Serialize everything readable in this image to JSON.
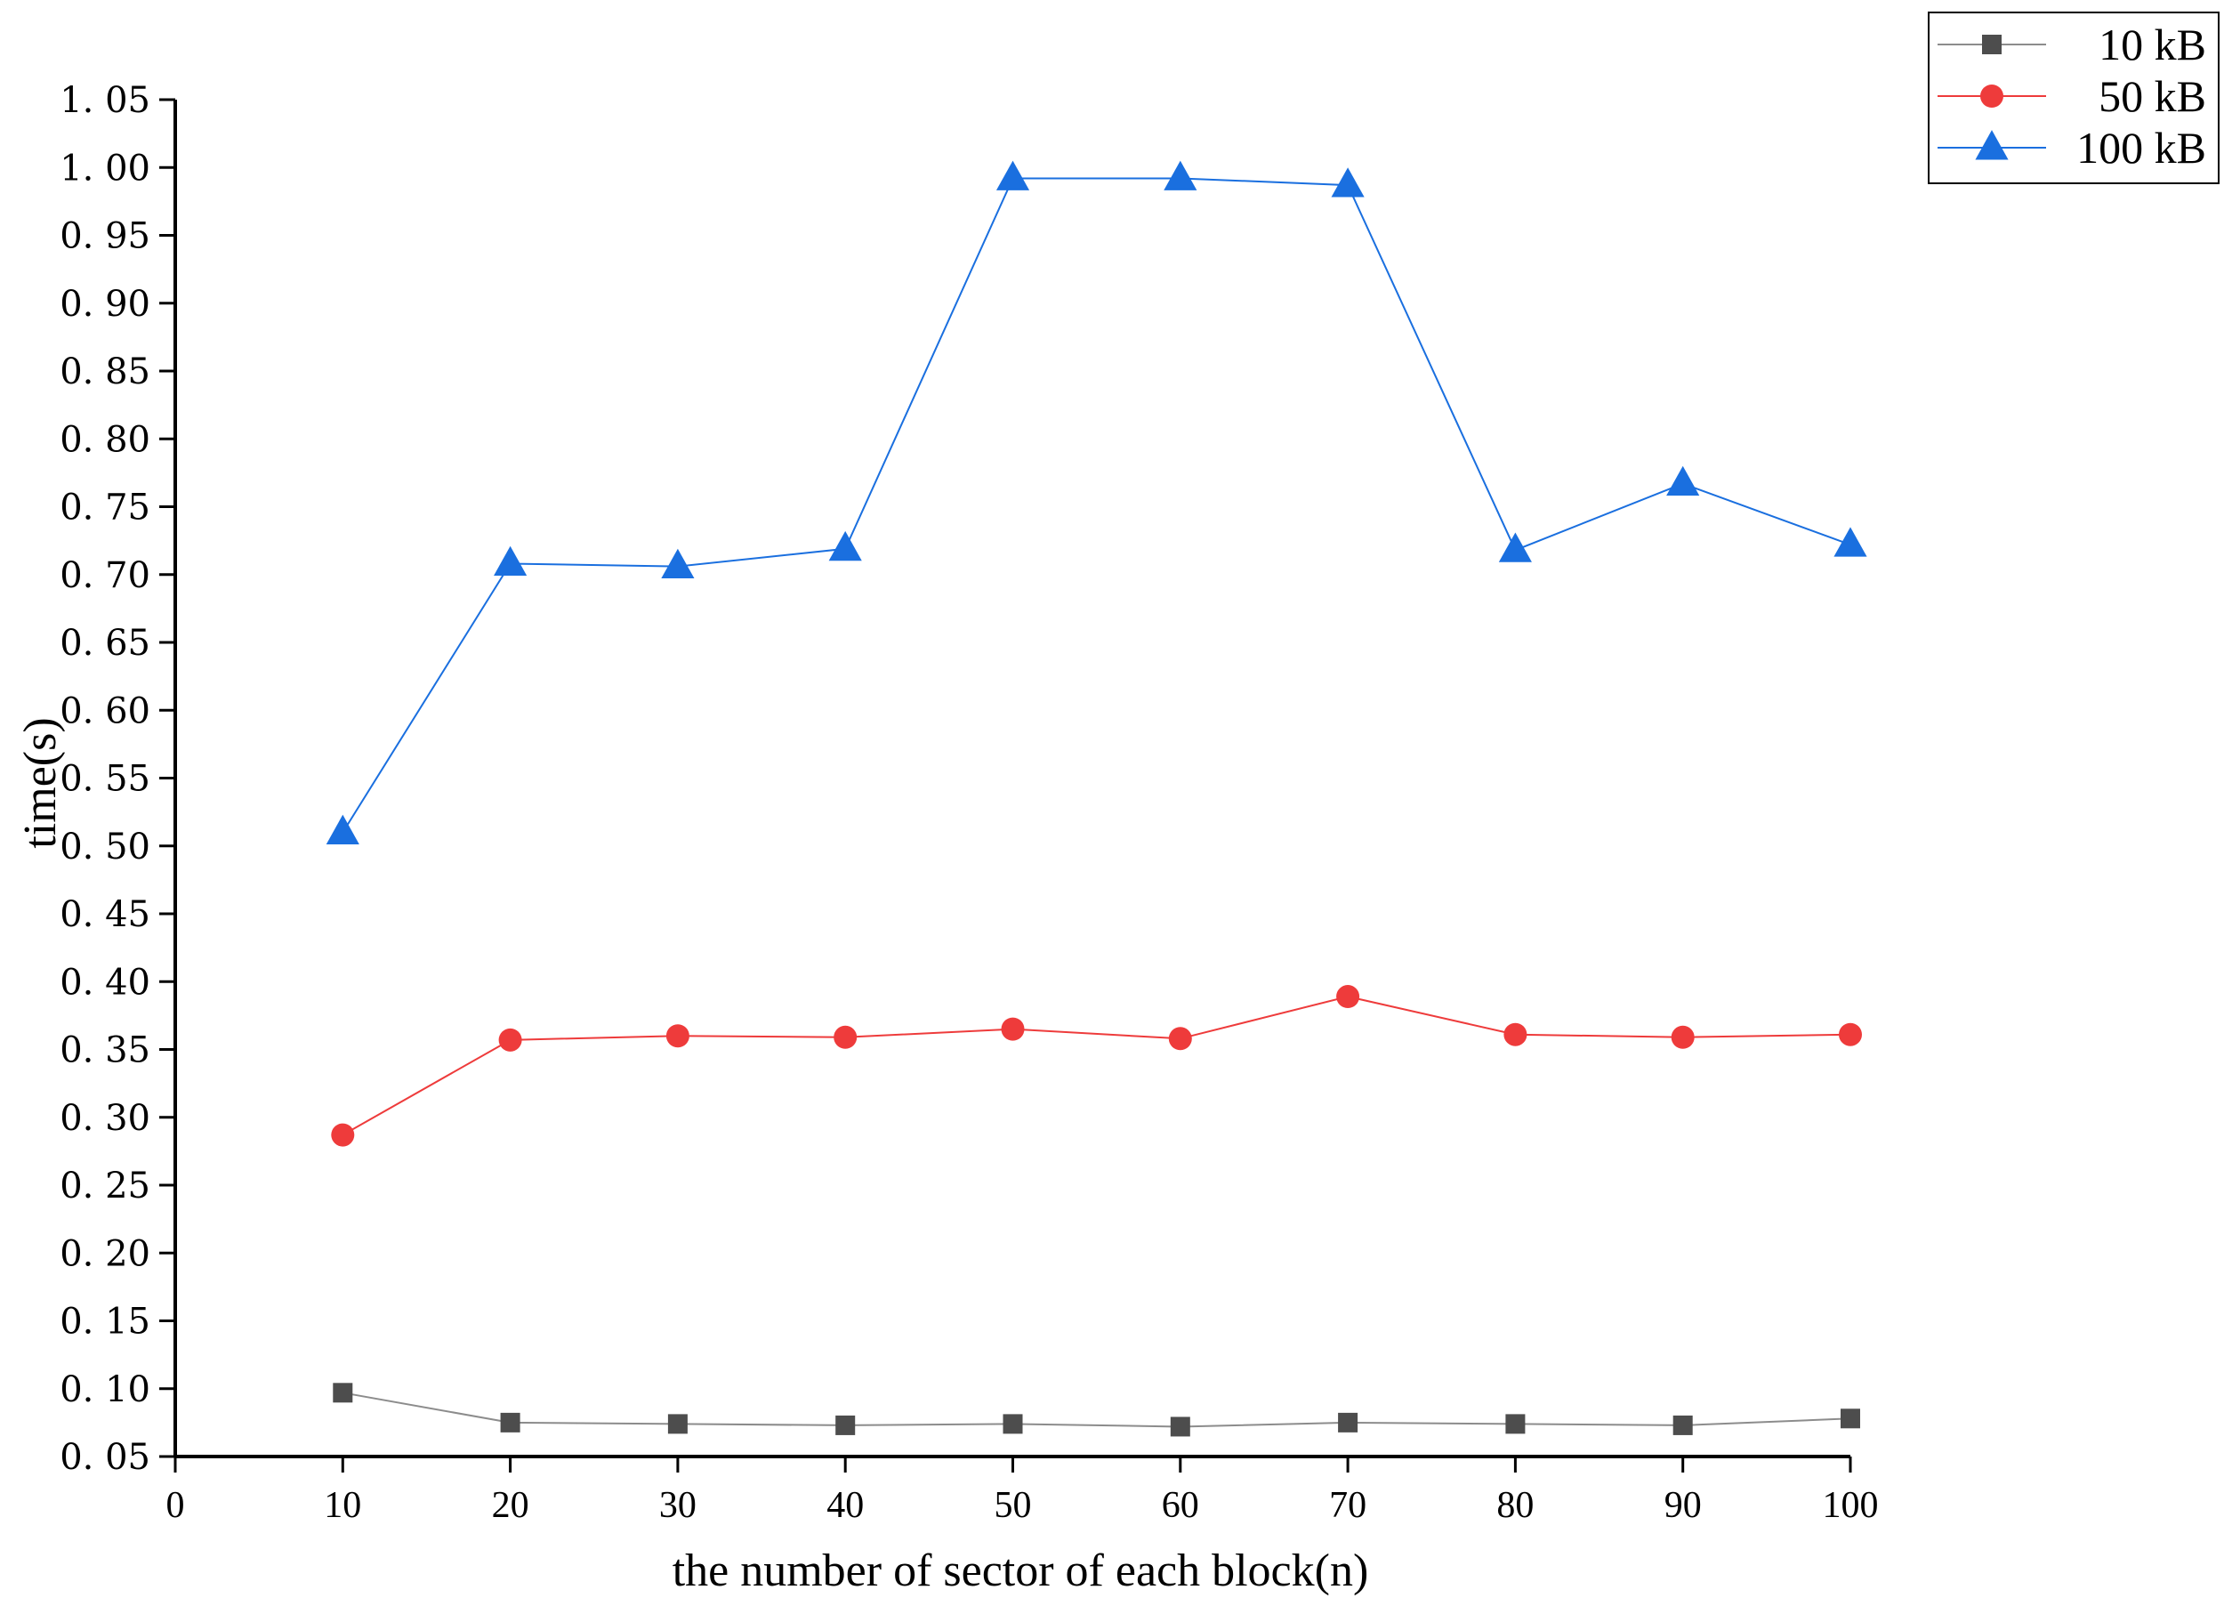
{
  "chart_data": {
    "type": "line",
    "title": "",
    "xlabel": "the number of sector of each block(n)",
    "ylabel": "time(s)",
    "xlim": [
      0,
      100
    ],
    "ylim": [
      0.05,
      1.05
    ],
    "x_ticks": [
      "0",
      "10",
      "20",
      "30",
      "40",
      "50",
      "60",
      "70",
      "80",
      "90",
      "100"
    ],
    "y_ticks": [
      "0. 05",
      "0. 10",
      "0. 15",
      "0. 20",
      "0. 25",
      "0. 30",
      "0. 35",
      "0. 40",
      "0. 45",
      "0. 50",
      "0. 55",
      "0. 60",
      "0. 65",
      "0. 70",
      "0. 75",
      "0. 80",
      "0. 85",
      "0. 90",
      "0. 95",
      "1. 00",
      "1. 05"
    ],
    "x": [
      10,
      20,
      30,
      40,
      50,
      60,
      70,
      80,
      90,
      100
    ],
    "grid": false,
    "legend_position": "top-right",
    "series": [
      {
        "name": "10  kB",
        "marker": "square",
        "color": "#4d4d4d",
        "line_color": "#8c8c8c",
        "values": [
          0.097,
          0.075,
          0.074,
          0.073,
          0.074,
          0.072,
          0.075,
          0.074,
          0.073,
          0.078
        ]
      },
      {
        "name": "50  kB",
        "marker": "circle",
        "color": "#ee3b3b",
        "line_color": "#ee3b3b",
        "values": [
          0.287,
          0.357,
          0.36,
          0.359,
          0.365,
          0.358,
          0.389,
          0.361,
          0.359,
          0.361
        ]
      },
      {
        "name": "100  kB",
        "marker": "triangle",
        "color": "#1a6fdf",
        "line_color": "#1a6fdf",
        "values": [
          0.51,
          0.708,
          0.706,
          0.719,
          0.992,
          0.992,
          0.987,
          0.718,
          0.767,
          0.722
        ]
      }
    ]
  }
}
